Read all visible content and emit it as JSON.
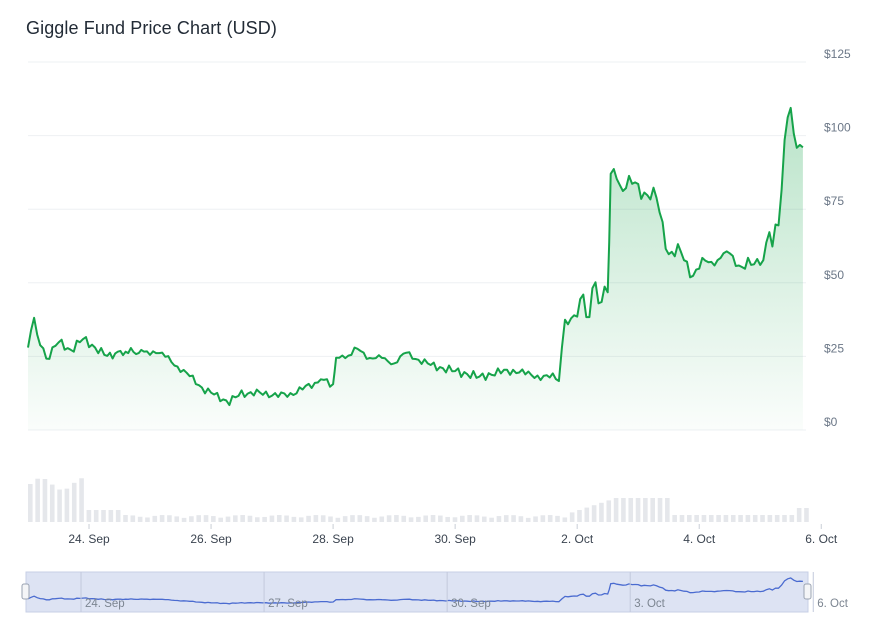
{
  "title": "Giggle Fund Price Chart (USD)",
  "colors": {
    "line": "#16a34a",
    "area_top": "#16a34a",
    "grid": "#eef0f3",
    "volume": "#e5e7eb",
    "navigator_fill": "#dde3f3",
    "navigator_line": "#4a6bd0"
  },
  "chart_data": {
    "type": "area",
    "currency": "USD",
    "x_start": "23 Sep",
    "x_end": "6 Oct",
    "ylim": [
      0,
      125
    ],
    "yticks": [
      "$0",
      "$25",
      "$50",
      "$75",
      "$100",
      "$125"
    ],
    "xticks": [
      "24. Sep",
      "26. Sep",
      "28. Sep",
      "30. Sep",
      "2. Oct",
      "4. Oct",
      "6. Oct"
    ],
    "navigator_ticks": [
      "24. Sep",
      "27. Sep",
      "30. Sep",
      "3. Oct",
      "6. Oct"
    ],
    "grid": true,
    "price_series": [
      [
        0.0,
        28
      ],
      [
        0.1,
        38
      ],
      [
        0.2,
        29
      ],
      [
        0.3,
        24
      ],
      [
        0.5,
        30
      ],
      [
        0.7,
        27
      ],
      [
        0.9,
        31
      ],
      [
        1.1,
        28
      ],
      [
        1.3,
        25
      ],
      [
        1.6,
        27
      ],
      [
        1.9,
        26
      ],
      [
        2.1,
        27
      ],
      [
        2.3,
        24
      ],
      [
        2.5,
        21
      ],
      [
        2.7,
        17
      ],
      [
        2.9,
        14
      ],
      [
        3.1,
        11
      ],
      [
        3.3,
        10
      ],
      [
        3.5,
        12
      ],
      [
        3.7,
        13
      ],
      [
        3.9,
        12
      ],
      [
        4.1,
        12
      ],
      [
        4.3,
        12
      ],
      [
        4.5,
        14
      ],
      [
        4.7,
        16
      ],
      [
        4.8,
        17
      ],
      [
        5.0,
        16
      ],
      [
        5.05,
        24
      ],
      [
        5.2,
        25
      ],
      [
        5.4,
        27
      ],
      [
        5.6,
        25
      ],
      [
        5.8,
        24
      ],
      [
        6.0,
        23
      ],
      [
        6.2,
        26
      ],
      [
        6.4,
        24
      ],
      [
        6.6,
        22
      ],
      [
        6.8,
        21
      ],
      [
        7.0,
        20
      ],
      [
        7.2,
        19
      ],
      [
        7.4,
        18
      ],
      [
        7.6,
        19
      ],
      [
        7.8,
        20
      ],
      [
        8.0,
        20
      ],
      [
        8.2,
        19
      ],
      [
        8.4,
        18
      ],
      [
        8.6,
        18
      ],
      [
        8.7,
        18
      ],
      [
        8.8,
        36
      ],
      [
        9.0,
        40
      ],
      [
        9.1,
        42
      ],
      [
        9.2,
        42
      ],
      [
        9.3,
        47
      ],
      [
        9.4,
        46
      ],
      [
        9.5,
        45
      ],
      [
        9.55,
        88
      ],
      [
        9.7,
        83
      ],
      [
        9.9,
        83
      ],
      [
        10.1,
        82
      ],
      [
        10.3,
        77
      ],
      [
        10.5,
        62
      ],
      [
        10.7,
        58
      ],
      [
        10.9,
        55
      ],
      [
        11.1,
        55
      ],
      [
        11.3,
        60
      ],
      [
        11.5,
        58
      ],
      [
        11.7,
        57
      ],
      [
        11.9,
        55
      ],
      [
        12.0,
        57
      ],
      [
        12.1,
        63
      ],
      [
        12.3,
        70
      ],
      [
        12.4,
        98
      ],
      [
        12.5,
        110
      ],
      [
        12.6,
        95
      ],
      [
        12.7,
        96
      ]
    ],
    "volume_note": "relative trading volume bars beneath price"
  },
  "x_axis_start_day_offset_label": "23 Sep"
}
